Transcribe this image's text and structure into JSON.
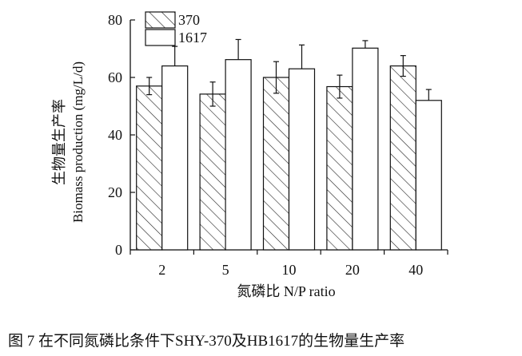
{
  "chart_data": {
    "type": "bar",
    "ylabel_cn": "生物量生产率",
    "ylabel_en": "Biomass production (mg/L/d)",
    "xlabel": "氮磷比 N/P ratio",
    "categories": [
      "2",
      "5",
      "10",
      "20",
      "40"
    ],
    "ylim": [
      0,
      80
    ],
    "yticks": [
      0,
      20,
      40,
      60,
      80
    ],
    "series": [
      {
        "name": "370",
        "pattern": "hatched",
        "values": [
          57,
          54.2,
          60,
          56.8,
          64
        ],
        "errors": [
          3.0,
          4.2,
          5.5,
          4.0,
          3.6
        ]
      },
      {
        "name": "1617",
        "pattern": "white",
        "values": [
          64,
          66.2,
          63,
          70.2,
          52
        ],
        "errors": [
          6.8,
          7.0,
          8.3,
          2.6,
          3.8
        ]
      }
    ],
    "legend_position": "top-left"
  },
  "caption": "图 7   在不同氮磷比条件下SHY-370及HB1617的生物量生产率",
  "colors": {
    "line": "#111111",
    "background": "#ffffff"
  }
}
